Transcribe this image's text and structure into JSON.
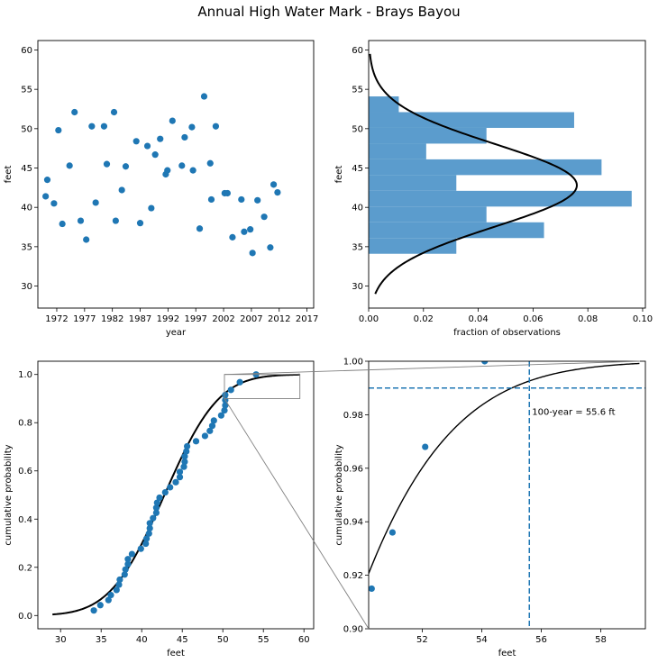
{
  "figure_title": "Annual High Water Mark - Brays Bayou",
  "colors": {
    "points": "#1f77b4",
    "hist": "#5b9ccd",
    "curve": "#000000",
    "zoom_box": "#808080"
  },
  "chart_data": [
    {
      "id": "scatter",
      "type": "scatter",
      "title": "",
      "xlabel": "year",
      "ylabel": "feet",
      "xlim": [
        1968.6,
        2018.2
      ],
      "ylim": [
        27.2,
        61.2
      ],
      "xticks": [
        1972,
        1977,
        1982,
        1987,
        1992,
        1997,
        2002,
        2007,
        2012,
        2017
      ],
      "yticks": [
        30,
        35,
        40,
        45,
        50,
        55,
        60
      ],
      "points": [
        [
          1970,
          41.4
        ],
        [
          1970.3,
          43.5
        ],
        [
          1971.5,
          40.5
        ],
        [
          1972.3,
          49.8
        ],
        [
          1973,
          37.9
        ],
        [
          1974.3,
          45.3
        ],
        [
          1975.2,
          52.1
        ],
        [
          1976.3,
          38.3
        ],
        [
          1977.3,
          35.9
        ],
        [
          1978.3,
          50.3
        ],
        [
          1979,
          40.6
        ],
        [
          1980.5,
          50.3
        ],
        [
          1981,
          45.5
        ],
        [
          1982.3,
          52.1
        ],
        [
          1982.6,
          38.3
        ],
        [
          1983.7,
          42.2
        ],
        [
          1984.4,
          45.2
        ],
        [
          1986.3,
          48.4
        ],
        [
          1987,
          38
        ],
        [
          1988.3,
          47.8
        ],
        [
          1989,
          39.9
        ],
        [
          1989.7,
          46.7
        ],
        [
          1990.6,
          48.7
        ],
        [
          1991.6,
          44.2
        ],
        [
          1991.9,
          44.7
        ],
        [
          1992.8,
          51
        ],
        [
          1994.5,
          45.3
        ],
        [
          1995,
          48.9
        ],
        [
          1996.3,
          50.2
        ],
        [
          1996.5,
          44.7
        ],
        [
          1997.7,
          37.3
        ],
        [
          1998.5,
          54.1
        ],
        [
          1999.6,
          45.6
        ],
        [
          1999.8,
          41
        ],
        [
          2000.6,
          50.3
        ],
        [
          2002.2,
          41.8
        ],
        [
          2002.7,
          41.8
        ],
        [
          2003.6,
          36.2
        ],
        [
          2005.2,
          41
        ],
        [
          2005.7,
          36.9
        ],
        [
          2006.8,
          37.2
        ],
        [
          2007.2,
          34.2
        ],
        [
          2008.1,
          40.9
        ],
        [
          2009.3,
          38.8
        ],
        [
          2010.4,
          34.9
        ],
        [
          2011,
          42.9
        ],
        [
          2011.7,
          41.9
        ]
      ]
    },
    {
      "id": "histogram",
      "type": "bar",
      "orientation": "horizontal",
      "title": "",
      "xlabel": "fraction of observations",
      "ylabel": "feet",
      "xlim": [
        0,
        0.101
      ],
      "ylim": [
        27.2,
        61.2
      ],
      "xticks": [
        0.0,
        0.02,
        0.04,
        0.06,
        0.08,
        0.1
      ],
      "yticks": [
        30,
        35,
        40,
        45,
        50,
        55,
        60
      ],
      "bin_edges": [
        34.1,
        36.1,
        38.1,
        40.1,
        42.1,
        44.1,
        46.1,
        48.1,
        50.1,
        52.1,
        54.1
      ],
      "values": [
        0.032,
        0.064,
        0.043,
        0.096,
        0.032,
        0.085,
        0.021,
        0.043,
        0.075,
        0.011
      ],
      "normal_fit": {
        "mean": 42.8,
        "sd": 5.25,
        "y_range": [
          29,
          59.5
        ]
      }
    },
    {
      "id": "cdf",
      "type": "scatter",
      "title": "",
      "xlabel": "feet",
      "ylabel": "cumulative probability",
      "xlim": [
        27.2,
        61.2
      ],
      "ylim": [
        -0.055,
        1.055
      ],
      "xticks": [
        30,
        35,
        40,
        45,
        50,
        55,
        60
      ],
      "yticks": [
        0.0,
        0.2,
        0.4,
        0.6,
        0.8,
        1.0
      ],
      "points": [
        [
          34.1,
          0.021
        ],
        [
          34.9,
          0.043
        ],
        [
          35.9,
          0.064
        ],
        [
          36.2,
          0.085
        ],
        [
          36.9,
          0.106
        ],
        [
          37.2,
          0.128
        ],
        [
          37.3,
          0.149
        ],
        [
          37.9,
          0.17
        ],
        [
          38,
          0.191
        ],
        [
          38.3,
          0.213
        ],
        [
          38.3,
          0.234
        ],
        [
          38.8,
          0.255
        ],
        [
          39.9,
          0.277
        ],
        [
          40.5,
          0.298
        ],
        [
          40.6,
          0.319
        ],
        [
          40.9,
          0.34
        ],
        [
          41,
          0.362
        ],
        [
          41,
          0.383
        ],
        [
          41.4,
          0.404
        ],
        [
          41.8,
          0.426
        ],
        [
          41.8,
          0.447
        ],
        [
          41.9,
          0.468
        ],
        [
          42.2,
          0.489
        ],
        [
          42.9,
          0.511
        ],
        [
          43.5,
          0.532
        ],
        [
          44.2,
          0.553
        ],
        [
          44.7,
          0.574
        ],
        [
          44.7,
          0.596
        ],
        [
          45.2,
          0.617
        ],
        [
          45.3,
          0.638
        ],
        [
          45.3,
          0.66
        ],
        [
          45.5,
          0.681
        ],
        [
          45.6,
          0.702
        ],
        [
          46.7,
          0.723
        ],
        [
          47.8,
          0.745
        ],
        [
          48.4,
          0.766
        ],
        [
          48.7,
          0.787
        ],
        [
          48.9,
          0.809
        ],
        [
          49.8,
          0.83
        ],
        [
          50.2,
          0.851
        ],
        [
          50.3,
          0.872
        ],
        [
          50.3,
          0.894
        ],
        [
          50.3,
          0.915
        ],
        [
          51,
          0.936
        ],
        [
          52.1,
          0.968
        ],
        [
          54.1,
          1.0
        ]
      ],
      "curve": {
        "type": "normal_cdf",
        "mean": 42.8,
        "sd": 5.25,
        "x_range": [
          29,
          59.5
        ]
      },
      "zoom_box": {
        "xlim": [
          50.2,
          59.5
        ],
        "ylim": [
          0.9,
          1.0
        ]
      }
    },
    {
      "id": "zoom",
      "type": "scatter",
      "title": "",
      "xlabel": "feet",
      "ylabel": "cumulative probability",
      "xlim": [
        50.2,
        59.5
      ],
      "ylim": [
        0.9,
        1.0
      ],
      "xticks": [
        52,
        54,
        56,
        58
      ],
      "yticks": [
        0.9,
        0.92,
        0.94,
        0.96,
        0.98,
        1.0
      ],
      "tick_format": {
        "x": 0,
        "y": 2
      },
      "points": [
        [
          50.3,
          0.915
        ],
        [
          51,
          0.936
        ],
        [
          52.1,
          0.968
        ],
        [
          54.1,
          1.0
        ]
      ],
      "curve": {
        "type": "normal_cdf",
        "mean": 42.8,
        "sd": 5.25,
        "x_range": [
          50.2,
          59.3
        ]
      },
      "return_level": {
        "x": 55.6,
        "p": 0.99,
        "label": "100-year = 55.6 ft"
      }
    }
  ]
}
